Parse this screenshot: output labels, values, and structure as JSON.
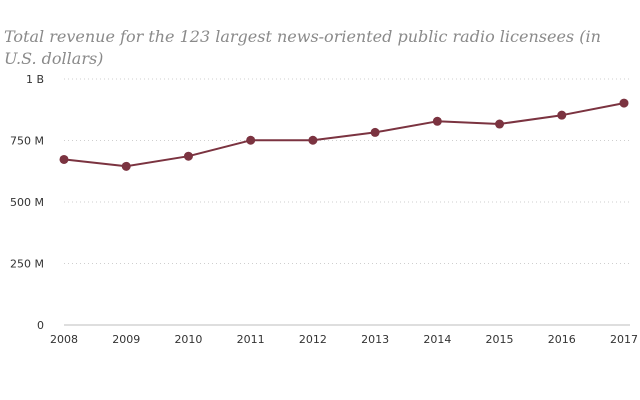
{
  "title": "Total revenue for the 123 largest news-oriented public radio licensees (in U.S. dollars)",
  "chart_data": {
    "type": "line",
    "title": "Total revenue for the 123 largest news-oriented public radio licensees (in U.S. dollars)",
    "xlabel": "",
    "ylabel": "",
    "categories": [
      "2008",
      "2009",
      "2010",
      "2011",
      "2012",
      "2013",
      "2014",
      "2015",
      "2016",
      "2017"
    ],
    "series": [
      {
        "values": [
          673000000,
          645000000,
          686000000,
          751000000,
          751000000,
          783000000,
          828000000,
          817000000,
          853000000,
          902000000
        ],
        "color": "#7b3340"
      }
    ],
    "ylim": [
      0,
      1000000000
    ],
    "yticks": [
      {
        "value": 0,
        "label": "0"
      },
      {
        "value": 250000000,
        "label": "250 M"
      },
      {
        "value": 500000000,
        "label": "500 M"
      },
      {
        "value": 750000000,
        "label": "750 M"
      },
      {
        "value": 1000000000,
        "label": "1 B"
      }
    ],
    "grid": true,
    "legend": "none"
  }
}
